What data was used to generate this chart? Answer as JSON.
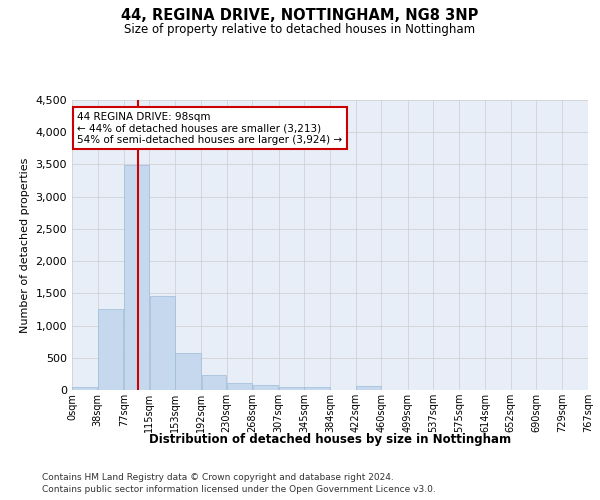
{
  "title": "44, REGINA DRIVE, NOTTINGHAM, NG8 3NP",
  "subtitle": "Size of property relative to detached houses in Nottingham",
  "xlabel": "Distribution of detached houses by size in Nottingham",
  "ylabel": "Number of detached properties",
  "bar_color": "#c5d8ed",
  "bar_edge_color": "#9bbcd8",
  "grid_color": "#cccccc",
  "bg_color": "#e8eef7",
  "vline_x": 98,
  "vline_color": "#cc0000",
  "annotation_line1": "44 REGINA DRIVE: 98sqm",
  "annotation_line2": "← 44% of detached houses are smaller (3,213)",
  "annotation_line3": "54% of semi-detached houses are larger (3,924) →",
  "annotation_box_color": "#cc0000",
  "bins": [
    0,
    38,
    77,
    115,
    153,
    192,
    230,
    268,
    307,
    345,
    384,
    422,
    460,
    499,
    537,
    575,
    614,
    652,
    690,
    729,
    767
  ],
  "bin_labels": [
    "0sqm",
    "38sqm",
    "77sqm",
    "115sqm",
    "153sqm",
    "192sqm",
    "230sqm",
    "268sqm",
    "307sqm",
    "345sqm",
    "384sqm",
    "422sqm",
    "460sqm",
    "499sqm",
    "537sqm",
    "575sqm",
    "614sqm",
    "652sqm",
    "690sqm",
    "729sqm",
    "767sqm"
  ],
  "bar_heights": [
    40,
    1260,
    3490,
    1460,
    580,
    240,
    115,
    80,
    50,
    40,
    0,
    55,
    0,
    0,
    0,
    0,
    0,
    0,
    0,
    0
  ],
  "ylim": [
    0,
    4500
  ],
  "yticks": [
    0,
    500,
    1000,
    1500,
    2000,
    2500,
    3000,
    3500,
    4000,
    4500
  ],
  "footer_line1": "Contains HM Land Registry data © Crown copyright and database right 2024.",
  "footer_line2": "Contains public sector information licensed under the Open Government Licence v3.0."
}
